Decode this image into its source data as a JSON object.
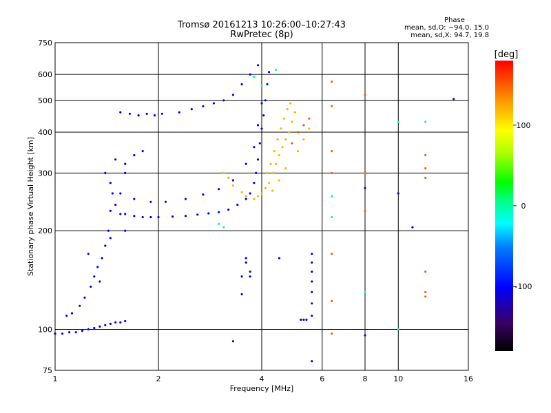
{
  "chart_data": {
    "type": "scatter",
    "title": "Tromsø 20161213 10:26:00–10:27:43",
    "subtitle": "RwPretec (8p)",
    "xlabel": "Frequency [MHz]",
    "ylabel": "Stationary phase Virtual Height [km]",
    "x_scale": "log",
    "y_scale": "log",
    "xlim": [
      1,
      16
    ],
    "ylim": [
      75,
      750
    ],
    "x_ticks": [
      {
        "value": 1,
        "label": "1"
      },
      {
        "value": 2,
        "label": "2"
      },
      {
        "value": 4,
        "label": "4"
      },
      {
        "value": 6,
        "label": "6"
      },
      {
        "value": 8,
        "label": "8"
      },
      {
        "value": 10,
        "label": "10"
      },
      {
        "value": 16,
        "label": "16"
      }
    ],
    "y_ticks": [
      {
        "value": 75,
        "label": "75"
      },
      {
        "value": 100,
        "label": "100"
      },
      {
        "value": 200,
        "label": "200"
      },
      {
        "value": 300,
        "label": "300"
      },
      {
        "value": 400,
        "label": "400"
      },
      {
        "value": 500,
        "label": "500"
      },
      {
        "value": 600,
        "label": "600"
      },
      {
        "value": 750,
        "label": "750"
      }
    ],
    "grid": true,
    "stats": {
      "title": "Phase",
      "line_o": "mean, sd,O: −94.0, 15.0",
      "line_x": "mean, sd,X:  94.7, 19.8"
    },
    "colorbar": {
      "label": "[deg]",
      "range": [
        -180,
        180
      ],
      "ticks": [
        {
          "value": 100,
          "label": "100"
        },
        {
          "value": 0,
          "label": "0"
        },
        {
          "value": -100,
          "label": "-100"
        }
      ]
    },
    "series": [
      {
        "phase": -100,
        "points": [
          [
            1.0,
            97
          ],
          [
            1.05,
            97
          ],
          [
            1.1,
            98
          ],
          [
            1.15,
            98
          ],
          [
            1.2,
            99
          ],
          [
            1.25,
            100
          ],
          [
            1.3,
            101
          ],
          [
            1.35,
            102
          ],
          [
            1.4,
            103
          ],
          [
            1.45,
            104
          ],
          [
            1.5,
            105
          ],
          [
            1.55,
            105
          ],
          [
            1.6,
            106
          ],
          [
            1.08,
            110
          ],
          [
            1.12,
            112
          ],
          [
            1.18,
            118
          ],
          [
            1.22,
            125
          ],
          [
            1.27,
            135
          ],
          [
            1.3,
            145
          ],
          [
            1.33,
            155
          ],
          [
            1.37,
            165
          ],
          [
            1.4,
            180
          ],
          [
            1.43,
            200
          ],
          [
            1.45,
            230
          ],
          [
            1.47,
            260
          ],
          [
            1.5,
            240
          ],
          [
            1.55,
            225
          ],
          [
            1.6,
            225
          ],
          [
            1.7,
            222
          ],
          [
            1.8,
            220
          ],
          [
            1.9,
            220
          ],
          [
            2.0,
            220
          ],
          [
            2.2,
            221
          ],
          [
            2.4,
            222
          ],
          [
            2.6,
            224
          ],
          [
            2.8,
            226
          ],
          [
            3.0,
            228
          ],
          [
            3.2,
            232
          ],
          [
            3.4,
            240
          ],
          [
            3.6,
            250
          ],
          [
            3.7,
            260
          ],
          [
            3.8,
            280
          ],
          [
            3.85,
            300
          ],
          [
            3.9,
            330
          ],
          [
            3.95,
            370
          ],
          [
            4.0,
            410
          ],
          [
            4.05,
            450
          ],
          [
            4.1,
            500
          ],
          [
            4.15,
            560
          ],
          [
            4.2,
            610
          ],
          [
            1.55,
            260
          ],
          [
            1.7,
            250
          ],
          [
            1.9,
            245
          ],
          [
            2.1,
            245
          ],
          [
            2.4,
            250
          ],
          [
            2.7,
            258
          ],
          [
            3.0,
            268
          ],
          [
            3.3,
            285
          ],
          [
            3.6,
            320
          ],
          [
            3.8,
            360
          ],
          [
            3.9,
            420
          ],
          [
            4.0,
            490
          ],
          [
            1.6,
            320
          ],
          [
            1.7,
            340
          ],
          [
            1.8,
            350
          ],
          [
            1.55,
            460
          ],
          [
            1.65,
            455
          ],
          [
            1.75,
            450
          ],
          [
            1.85,
            455
          ],
          [
            1.95,
            450
          ],
          [
            2.05,
            455
          ],
          [
            2.3,
            460
          ],
          [
            2.5,
            470
          ],
          [
            2.7,
            480
          ],
          [
            2.9,
            490
          ],
          [
            3.1,
            500
          ],
          [
            3.3,
            520
          ],
          [
            3.5,
            560
          ],
          [
            3.7,
            600
          ],
          [
            3.9,
            640
          ],
          [
            1.25,
            170
          ],
          [
            1.35,
            140
          ],
          [
            1.45,
            190
          ],
          [
            1.6,
            200
          ],
          [
            1.5,
            330
          ],
          [
            1.6,
            300
          ],
          [
            1.45,
            280
          ],
          [
            1.4,
            300
          ]
        ]
      },
      {
        "phase": 120,
        "points": [
          [
            3.8,
            250
          ],
          [
            3.9,
            255
          ],
          [
            4.0,
            260
          ],
          [
            4.1,
            270
          ],
          [
            4.2,
            280
          ],
          [
            4.3,
            300
          ],
          [
            4.4,
            320
          ],
          [
            4.5,
            340
          ],
          [
            4.6,
            360
          ],
          [
            4.7,
            380
          ],
          [
            4.8,
            400
          ],
          [
            4.9,
            430
          ],
          [
            5.0,
            460
          ],
          [
            4.15,
            300
          ],
          [
            4.25,
            320
          ],
          [
            4.35,
            350
          ],
          [
            4.45,
            380
          ],
          [
            4.55,
            410
          ],
          [
            4.65,
            440
          ],
          [
            4.75,
            470
          ],
          [
            4.85,
            490
          ],
          [
            3.6,
            255
          ],
          [
            3.5,
            262
          ],
          [
            3.3,
            275
          ],
          [
            3.2,
            290
          ],
          [
            3.1,
            300
          ],
          [
            4.3,
            265
          ],
          [
            4.5,
            285
          ],
          [
            4.7,
            310
          ],
          [
            5.1,
            350
          ],
          [
            5.3,
            380
          ],
          [
            5.5,
            410
          ]
        ]
      },
      {
        "phase": 150,
        "points": [
          [
            4.9,
            370
          ],
          [
            5.1,
            400
          ],
          [
            5.3,
            420
          ],
          [
            5.5,
            440
          ],
          [
            6.4,
            350
          ],
          [
            6.4,
            300
          ],
          [
            6.4,
            170
          ],
          [
            6.4,
            122
          ],
          [
            6.4,
            97
          ],
          [
            6.4,
            570
          ],
          [
            6.4,
            480
          ],
          [
            8.0,
            300
          ],
          [
            8.0,
            520
          ],
          [
            8.0,
            230
          ],
          [
            12.0,
            340
          ],
          [
            12.0,
            310
          ],
          [
            12.0,
            290
          ],
          [
            12.0,
            150
          ],
          [
            12.0,
            130
          ],
          [
            12.0,
            126
          ]
        ]
      },
      {
        "phase": -110,
        "points": [
          [
            5.6,
            170
          ],
          [
            5.6,
            160
          ],
          [
            5.6,
            150
          ],
          [
            5.6,
            140
          ],
          [
            5.6,
            130
          ],
          [
            5.6,
            120
          ],
          [
            5.6,
            110
          ],
          [
            5.6,
            80
          ],
          [
            3.6,
            165
          ],
          [
            3.6,
            160
          ],
          [
            3.7,
            150
          ],
          [
            3.7,
            145
          ],
          [
            3.5,
            145
          ],
          [
            3.5,
            128
          ],
          [
            3.3,
            92
          ],
          [
            4.5,
            165
          ],
          [
            5.2,
            107
          ],
          [
            5.3,
            107
          ],
          [
            5.4,
            107
          ],
          [
            8.0,
            270
          ],
          [
            8.0,
            96
          ],
          [
            10.0,
            260
          ],
          [
            11.0,
            205
          ],
          [
            14.5,
            505
          ]
        ]
      },
      {
        "phase": 0,
        "points": [
          [
            3.8,
            590
          ],
          [
            4.4,
            620
          ],
          [
            3.0,
            210
          ],
          [
            3.1,
            205
          ],
          [
            4.0,
            555
          ],
          [
            6.4,
            255
          ],
          [
            6.4,
            220
          ],
          [
            8.0,
            130
          ],
          [
            10.0,
            430
          ],
          [
            12.0,
            430
          ],
          [
            10.0,
            100
          ]
        ]
      }
    ]
  }
}
